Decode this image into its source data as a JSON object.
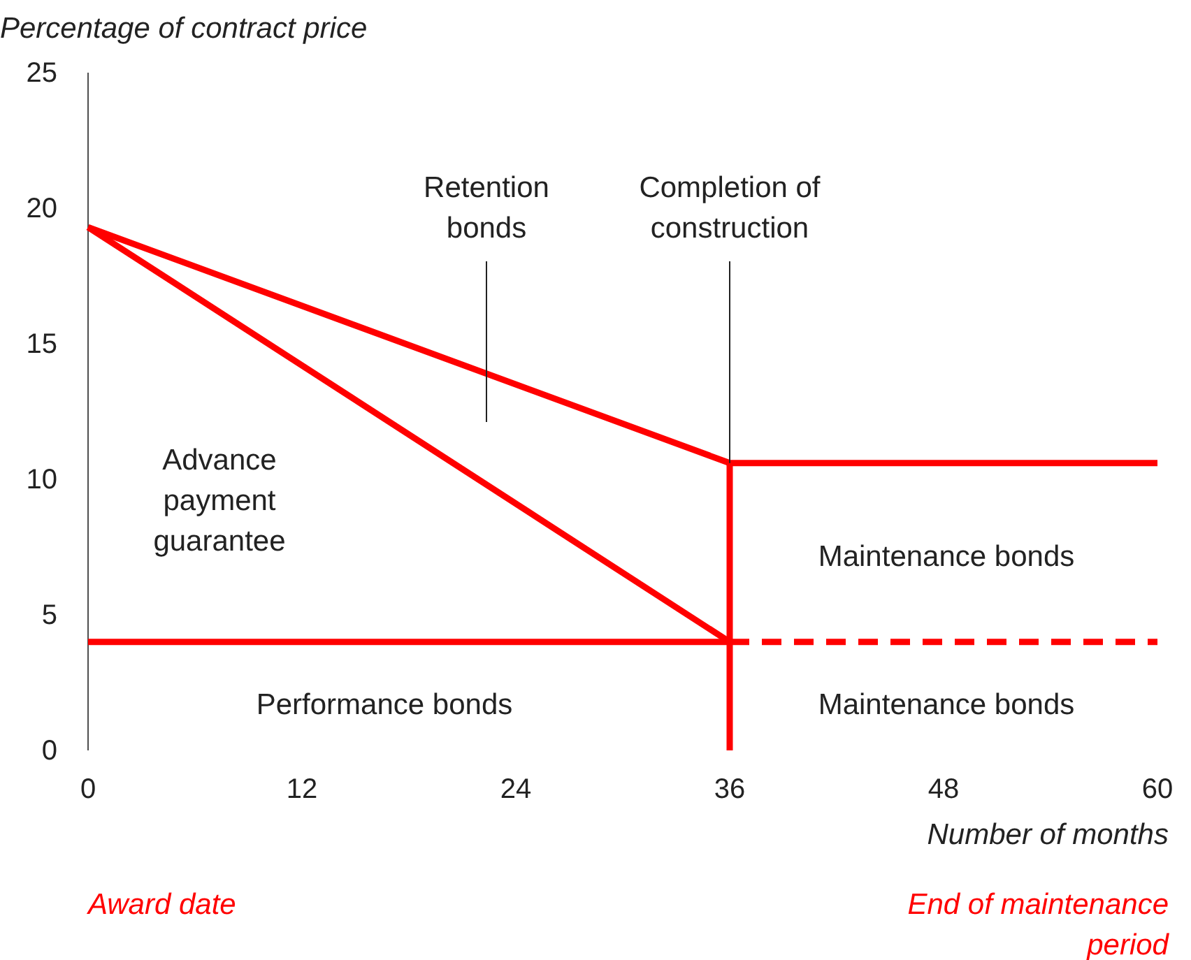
{
  "chart_data": {
    "type": "line",
    "ylabel": "Percentage of contract price",
    "xlabel": "Number of months",
    "xlim": [
      0,
      60
    ],
    "ylim": [
      0,
      25
    ],
    "xticks": [
      0,
      12,
      24,
      36,
      48,
      60
    ],
    "yticks": [
      0,
      5,
      10,
      15,
      20,
      25
    ],
    "grid": false,
    "series": [
      {
        "color": "#ff0000",
        "x": [
          0,
          36,
          60
        ],
        "values": [
          19.3,
          10.6,
          10.6
        ]
      },
      {
        "color": "#ff0000",
        "x": [
          0,
          36
        ],
        "values": [
          19.3,
          4
        ]
      },
      {
        "color": "#ff0000",
        "x": [
          0,
          36
        ],
        "values": [
          4,
          4
        ]
      },
      {
        "color": "#ff0000",
        "x": [
          36,
          60
        ],
        "values": [
          4,
          4
        ],
        "line_style": "dashed"
      },
      {
        "color": "#ff0000",
        "x": [
          36,
          36
        ],
        "values": [
          0,
          10.6
        ]
      }
    ],
    "annotations": [
      "Retention\nbonds",
      {
        "text": "Completion of\nconstruction",
        "x": 36,
        "y": 10.6
      },
      "Advance\npayment\nguarantee",
      "Maintenance bonds",
      "Maintenance bonds",
      "Performance bonds",
      "Award date",
      "End of maintenance\nperiod"
    ]
  }
}
